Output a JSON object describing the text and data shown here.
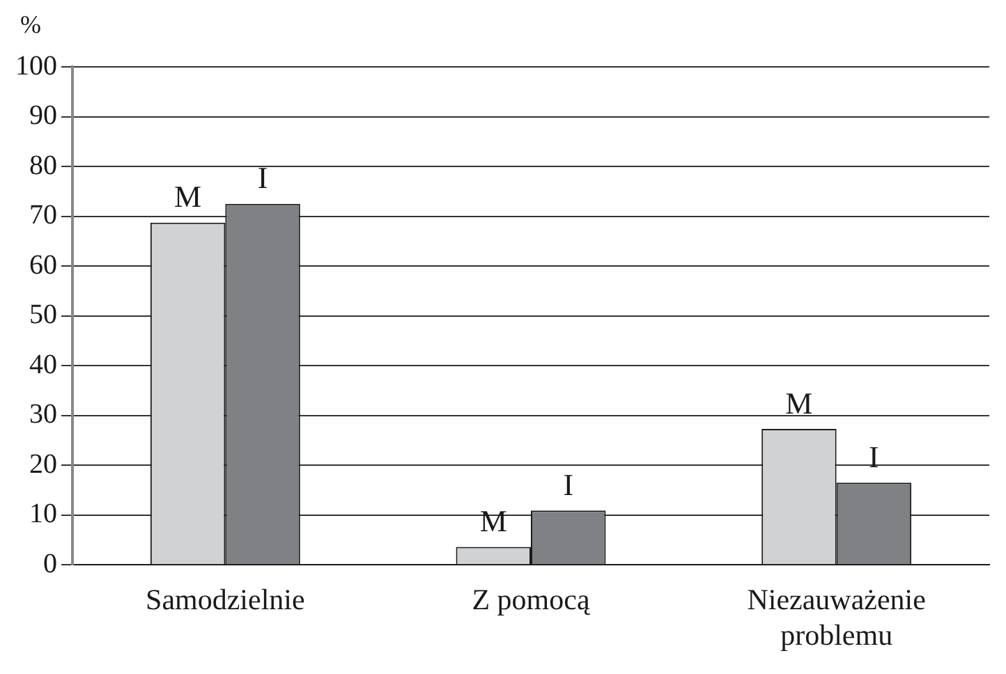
{
  "chart_data": {
    "type": "bar",
    "ylabel": "%",
    "categories": [
      "Samodzielnie",
      "Z pomocą",
      "Niezauważenie problemu"
    ],
    "series": [
      {
        "name": "M",
        "color": "#d1d2d4",
        "values": [
          68.7,
          3.6,
          27.3
        ]
      },
      {
        "name": "I",
        "color": "#808185",
        "values": [
          72.5,
          10.9,
          16.5
        ]
      }
    ],
    "ylim": [
      0,
      100
    ],
    "yticks": [
      0,
      10,
      20,
      30,
      40,
      50,
      60,
      70,
      80,
      90,
      100
    ],
    "grid": "y",
    "legend": false
  }
}
